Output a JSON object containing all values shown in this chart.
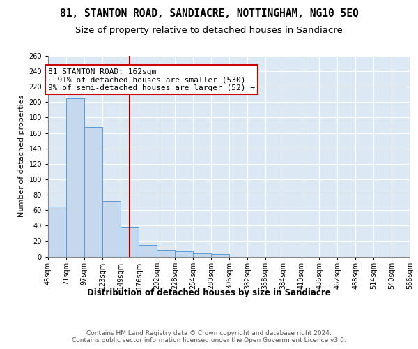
{
  "title": "81, STANTON ROAD, SANDIACRE, NOTTINGHAM, NG10 5EQ",
  "subtitle": "Size of property relative to detached houses in Sandiacre",
  "xlabel": "Distribution of detached houses by size in Sandiacre",
  "ylabel": "Number of detached properties",
  "bin_edges": [
    45,
    71,
    97,
    123,
    149,
    176,
    202,
    228,
    254,
    280,
    306,
    332,
    358,
    384,
    410,
    436,
    462,
    488,
    514,
    540,
    566
  ],
  "bin_labels": [
    "45sqm",
    "71sqm",
    "97sqm",
    "123sqm",
    "149sqm",
    "176sqm",
    "202sqm",
    "228sqm",
    "254sqm",
    "280sqm",
    "306sqm",
    "332sqm",
    "358sqm",
    "384sqm",
    "410sqm",
    "436sqm",
    "462sqm",
    "488sqm",
    "514sqm",
    "540sqm",
    "566sqm"
  ],
  "counts": [
    65,
    205,
    168,
    72,
    38,
    15,
    9,
    7,
    4,
    3,
    0,
    0,
    0,
    0,
    0,
    0,
    0,
    0,
    0,
    0
  ],
  "bar_color": "#c5d8ee",
  "bar_edge_color": "#5b9bd5",
  "property_size": 162,
  "vline_color": "#990000",
  "annotation_text": "81 STANTON ROAD: 162sqm\n← 91% of detached houses are smaller (530)\n9% of semi-detached houses are larger (52) →",
  "annotation_box_color": "white",
  "annotation_box_edge_color": "#cc0000",
  "ylim": [
    0,
    260
  ],
  "yticks": [
    0,
    20,
    40,
    60,
    80,
    100,
    120,
    140,
    160,
    180,
    200,
    220,
    240,
    260
  ],
  "background_color": "#dce9f5",
  "footnote": "Contains HM Land Registry data © Crown copyright and database right 2024.\nContains public sector information licensed under the Open Government Licence v3.0.",
  "title_fontsize": 10.5,
  "subtitle_fontsize": 9.5,
  "xlabel_fontsize": 8.5,
  "ylabel_fontsize": 8,
  "tick_fontsize": 7,
  "annotation_fontsize": 8,
  "footnote_fontsize": 6.5
}
